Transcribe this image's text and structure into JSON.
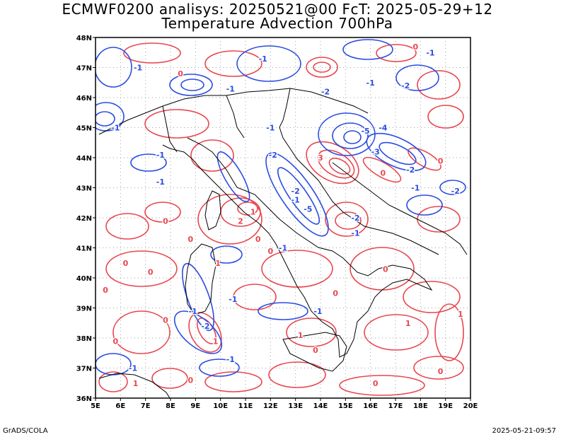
{
  "title_line1": "ECMWF0200 analisys: 20250521@00 FcT: 2025-05-29+12",
  "title_line2": "Temperature Advection 700hPa",
  "footer_left": "GrADS/COLA",
  "footer_right": "2025-05-21-09:57",
  "map": {
    "lon_range": [
      5,
      20
    ],
    "lat_range": [
      36,
      48
    ],
    "lon_ticks": [
      "5E",
      "6E",
      "7E",
      "8E",
      "9E",
      "10E",
      "11E",
      "12E",
      "13E",
      "14E",
      "15E",
      "16E",
      "17E",
      "18E",
      "19E",
      "20E"
    ],
    "lat_ticks": [
      "36N",
      "37N",
      "38N",
      "39N",
      "40N",
      "41N",
      "42N",
      "43N",
      "44N",
      "45N",
      "46N",
      "47N",
      "48N"
    ],
    "grid": "dotted",
    "colors": {
      "warm_advection": "#e8474f",
      "cold_advection": "#2a4de0",
      "coast": "#000000",
      "grid": "#a0a0a0"
    },
    "contour_labels": [
      {
        "text": "0",
        "lon": 8.4,
        "lat": 46.8,
        "c": "warm"
      },
      {
        "text": "-1",
        "lon": 6.7,
        "lat": 47.0,
        "c": "cold"
      },
      {
        "text": "-1",
        "lon": 5.8,
        "lat": 45.0,
        "c": "cold"
      },
      {
        "text": "-1",
        "lon": 10.4,
        "lat": 46.3,
        "c": "cold"
      },
      {
        "text": "-1",
        "lon": 11.7,
        "lat": 47.3,
        "c": "cold"
      },
      {
        "text": "-2",
        "lon": 14.2,
        "lat": 46.2,
        "c": "cold"
      },
      {
        "text": "-1",
        "lon": 16.0,
        "lat": 46.5,
        "c": "cold"
      },
      {
        "text": "-2",
        "lon": 17.4,
        "lat": 46.4,
        "c": "cold"
      },
      {
        "text": "0",
        "lon": 17.8,
        "lat": 47.7,
        "c": "warm"
      },
      {
        "text": "-1",
        "lon": 18.4,
        "lat": 47.5,
        "c": "cold"
      },
      {
        "text": "-1",
        "lon": 12.0,
        "lat": 45.0,
        "c": "cold"
      },
      {
        "text": "-1",
        "lon": 7.6,
        "lat": 44.1,
        "c": "cold"
      },
      {
        "text": "-1",
        "lon": 7.6,
        "lat": 43.2,
        "c": "cold"
      },
      {
        "text": "0",
        "lon": 7.8,
        "lat": 41.9,
        "c": "warm"
      },
      {
        "text": "-2",
        "lon": 12.1,
        "lat": 44.1,
        "c": "cold"
      },
      {
        "text": "3",
        "lon": 14.0,
        "lat": 44.0,
        "c": "warm"
      },
      {
        "text": "-5",
        "lon": 15.8,
        "lat": 44.9,
        "c": "cold"
      },
      {
        "text": "-4",
        "lon": 16.5,
        "lat": 45.0,
        "c": "cold"
      },
      {
        "text": "-3",
        "lon": 16.2,
        "lat": 44.2,
        "c": "cold"
      },
      {
        "text": "0",
        "lon": 16.5,
        "lat": 43.5,
        "c": "warm"
      },
      {
        "text": "-2",
        "lon": 17.6,
        "lat": 43.6,
        "c": "cold"
      },
      {
        "text": "0",
        "lon": 18.8,
        "lat": 43.9,
        "c": "warm"
      },
      {
        "text": "-2",
        "lon": 19.4,
        "lat": 42.9,
        "c": "cold"
      },
      {
        "text": "-1",
        "lon": 17.8,
        "lat": 43.0,
        "c": "cold"
      },
      {
        "text": "-2",
        "lon": 13.0,
        "lat": 42.9,
        "c": "cold"
      },
      {
        "text": "-5",
        "lon": 13.5,
        "lat": 42.3,
        "c": "cold"
      },
      {
        "text": "-1",
        "lon": 13.0,
        "lat": 42.6,
        "c": "cold"
      },
      {
        "text": "1",
        "lon": 11.3,
        "lat": 42.2,
        "c": "warm"
      },
      {
        "text": "2",
        "lon": 10.8,
        "lat": 41.9,
        "c": "warm"
      },
      {
        "text": "0",
        "lon": 11.5,
        "lat": 41.3,
        "c": "warm"
      },
      {
        "text": "-2",
        "lon": 15.4,
        "lat": 42.0,
        "c": "cold"
      },
      {
        "text": "-1",
        "lon": 15.4,
        "lat": 41.5,
        "c": "cold"
      },
      {
        "text": "-1",
        "lon": 12.5,
        "lat": 41.0,
        "c": "cold"
      },
      {
        "text": "0",
        "lon": 12.0,
        "lat": 40.9,
        "c": "warm"
      },
      {
        "text": "0",
        "lon": 8.8,
        "lat": 41.3,
        "c": "warm"
      },
      {
        "text": "0",
        "lon": 6.2,
        "lat": 40.5,
        "c": "warm"
      },
      {
        "text": "0",
        "lon": 7.2,
        "lat": 40.2,
        "c": "warm"
      },
      {
        "text": "0",
        "lon": 5.4,
        "lat": 39.6,
        "c": "warm"
      },
      {
        "text": "1",
        "lon": 9.9,
        "lat": 40.5,
        "c": "warm"
      },
      {
        "text": "0",
        "lon": 14.6,
        "lat": 39.5,
        "c": "warm"
      },
      {
        "text": "-1",
        "lon": 10.5,
        "lat": 39.3,
        "c": "cold"
      },
      {
        "text": "-1",
        "lon": 8.9,
        "lat": 38.9,
        "c": "cold"
      },
      {
        "text": "-2",
        "lon": 9.4,
        "lat": 38.4,
        "c": "cold"
      },
      {
        "text": "-1",
        "lon": 13.9,
        "lat": 38.9,
        "c": "cold"
      },
      {
        "text": "0",
        "lon": 7.8,
        "lat": 38.6,
        "c": "warm"
      },
      {
        "text": "1",
        "lon": 9.8,
        "lat": 37.9,
        "c": "warm"
      },
      {
        "text": "0",
        "lon": 5.8,
        "lat": 37.9,
        "c": "warm"
      },
      {
        "text": "-1",
        "lon": 6.5,
        "lat": 37.0,
        "c": "cold"
      },
      {
        "text": "-1",
        "lon": 10.4,
        "lat": 37.3,
        "c": "cold"
      },
      {
        "text": "0",
        "lon": 13.8,
        "lat": 37.6,
        "c": "warm"
      },
      {
        "text": "1",
        "lon": 13.2,
        "lat": 38.1,
        "c": "warm"
      },
      {
        "text": "0",
        "lon": 16.6,
        "lat": 40.3,
        "c": "warm"
      },
      {
        "text": "1",
        "lon": 17.5,
        "lat": 38.5,
        "c": "warm"
      },
      {
        "text": "0",
        "lon": 18.8,
        "lat": 36.9,
        "c": "warm"
      },
      {
        "text": "0",
        "lon": 16.2,
        "lat": 36.5,
        "c": "warm"
      },
      {
        "text": "1",
        "lon": 6.6,
        "lat": 36.5,
        "c": "warm"
      },
      {
        "text": "0",
        "lon": 8.8,
        "lat": 36.6,
        "c": "warm"
      },
      {
        "text": "1",
        "lon": 19.6,
        "lat": 38.8,
        "c": "warm"
      }
    ]
  }
}
